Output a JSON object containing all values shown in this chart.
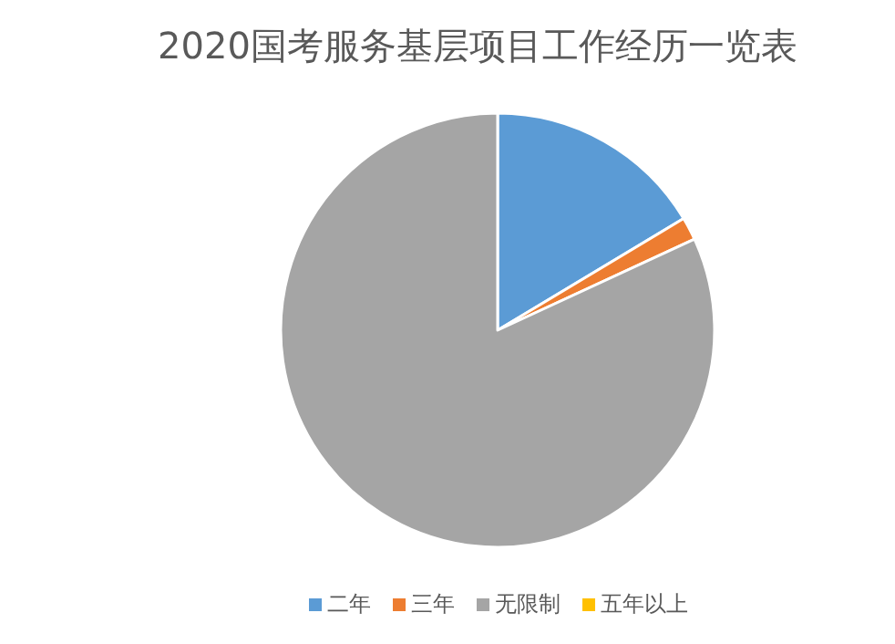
{
  "chart_data": {
    "type": "pie",
    "title": "2020国考服务基层项目工作经历一览表",
    "categories": [
      "二年",
      "三年",
      "无限制",
      "五年以上"
    ],
    "values": [
      16.4,
      1.7,
      81.9,
      0
    ],
    "colors": [
      "#5b9bd5",
      "#ed7d31",
      "#a5a5a5",
      "#ffc000"
    ],
    "legend": "bottom"
  }
}
